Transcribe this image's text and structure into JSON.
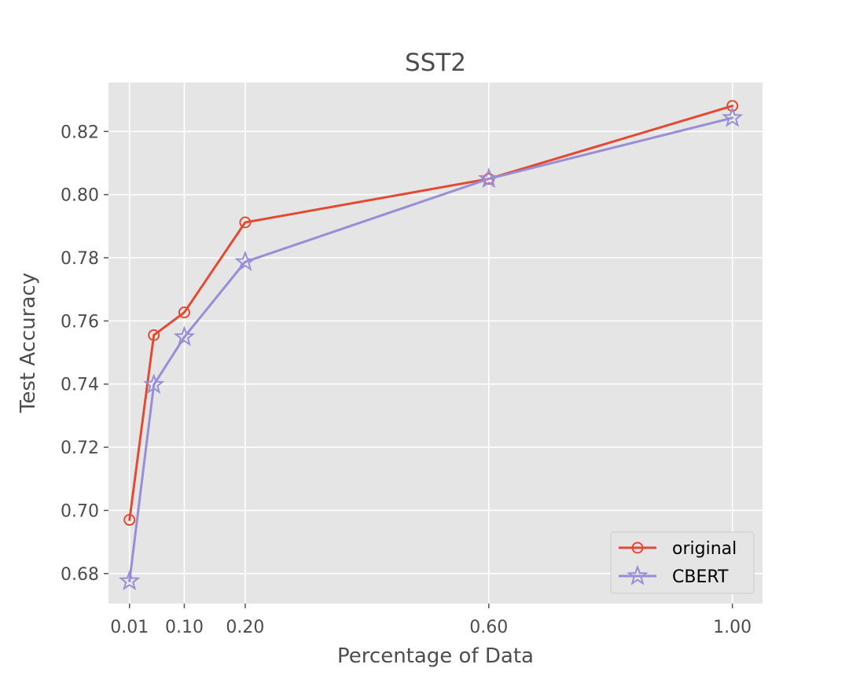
{
  "chart_data": {
    "type": "line",
    "title": "SST2",
    "xlabel": "Percentage of Data",
    "ylabel": "Test Accuracy",
    "xlim": [
      -0.0245,
      1.0495
    ],
    "ylim": [
      0.6705,
      0.8355
    ],
    "xticks": [
      0.01,
      0.1,
      0.2,
      0.6,
      1.0
    ],
    "xtick_labels": [
      "0.01",
      "0.10",
      "0.20",
      "0.60",
      "1.00"
    ],
    "yticks": [
      0.68,
      0.7,
      0.72,
      0.74,
      0.76,
      0.78,
      0.8,
      0.82
    ],
    "ytick_labels": [
      "0.68",
      "0.70",
      "0.72",
      "0.74",
      "0.76",
      "0.78",
      "0.80",
      "0.82"
    ],
    "grid": true,
    "legend_position": "lower right",
    "x": [
      0.01,
      0.05,
      0.1,
      0.2,
      0.6,
      1.0
    ],
    "series": [
      {
        "name": "original",
        "values": [
          0.697,
          0.7555,
          0.7627,
          0.7912,
          0.805,
          0.8281
        ],
        "color": "#e24a33",
        "marker": "circle"
      },
      {
        "name": "CBERT",
        "values": [
          0.6776,
          0.7398,
          0.7549,
          0.7787,
          0.805,
          0.8243
        ],
        "color": "#988ed5",
        "marker": "star"
      }
    ],
    "colors": {
      "background": "#e5e5e5",
      "grid": "#ffffff"
    }
  }
}
